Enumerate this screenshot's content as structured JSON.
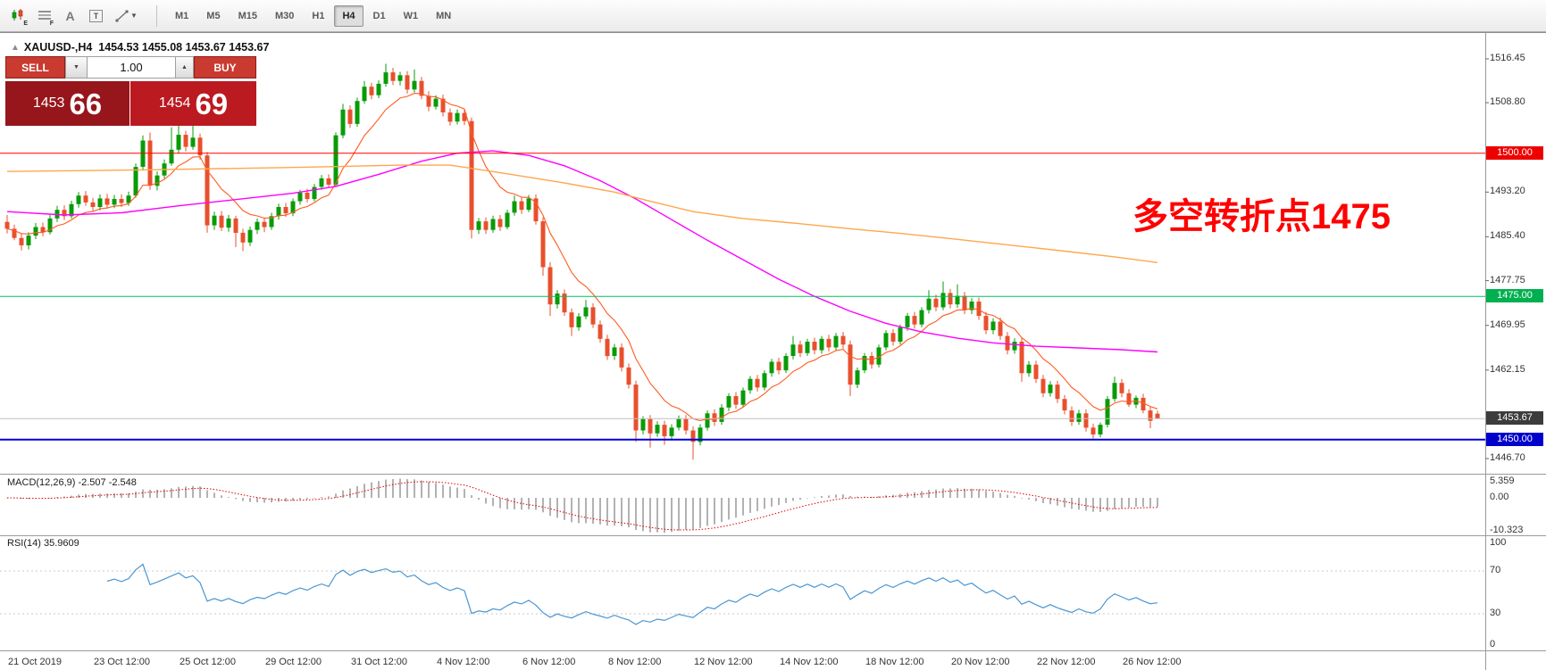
{
  "toolbar": {
    "tool_letters": {
      "e": "E",
      "f": "F",
      "a": "A",
      "t": "T"
    },
    "timeframes": [
      "M1",
      "M5",
      "M15",
      "M30",
      "H1",
      "H4",
      "D1",
      "W1",
      "MN"
    ],
    "active_timeframe": "H4"
  },
  "chart": {
    "symbol": "XAUUSD-",
    "timeframe": "H4",
    "header": "XAUUSD-,H4  1454.53 1455.08 1453.67 1453.67",
    "open": "1454.53",
    "high": "1455.08",
    "low": "1453.67",
    "close": "1453.67"
  },
  "trade_panel": {
    "sell_label": "SELL",
    "buy_label": "BUY",
    "volume": "1.00",
    "bid_main": "1453",
    "bid_big": "66",
    "ask_main": "1454",
    "ask_big": "69",
    "button_color": "#c93a30",
    "bid_color": "#96161c",
    "ask_color": "#bb1a20"
  },
  "annotation": {
    "text": "多空转折点1475",
    "color": "#ff0000"
  },
  "chart_data": {
    "type": "candlestick",
    "title": "XAUUSD- H4",
    "colors": {
      "up": "#089b08",
      "down": "#e8502d",
      "ma_fast": "#ff5a1f",
      "ma_medium": "#ff00ff",
      "ma_slow": "#ffa64d",
      "macd_histogram": "#a0a0a0",
      "macd_signal": "#e00000",
      "rsi": "#4a96d2"
    },
    "y_axis_labels": [
      "1516.45",
      "1508.80",
      "1493.20",
      "1485.40",
      "1477.75",
      "1469.95",
      "1462.15",
      "1446.70"
    ],
    "price_badges": [
      {
        "text": "1500.00",
        "price": 1500.0,
        "color": "#ee0000"
      },
      {
        "text": "1475.00",
        "price": 1475.0,
        "color": "#00b050"
      },
      {
        "text": "1453.67",
        "price": 1453.67,
        "color": "#3c3c3c"
      },
      {
        "text": "1450.00",
        "price": 1450.0,
        "color": "#0000cc"
      }
    ],
    "hlines": [
      {
        "price": 1500.0,
        "color": "#ff0000",
        "width": 1
      },
      {
        "price": 1475.0,
        "color": "#00c060",
        "width": 1
      },
      {
        "price": 1453.67,
        "color": "#c0c0c0",
        "width": 1
      },
      {
        "price": 1450.0,
        "color": "#0000dd",
        "width": 2
      }
    ],
    "time_labels": [
      "21 Oct 2019",
      "23 Oct 12:00",
      "25 Oct 12:00",
      "29 Oct 12:00",
      "31 Oct 12:00",
      "4 Nov 12:00",
      "6 Nov 12:00",
      "8 Nov 12:00",
      "12 Nov 12:00",
      "14 Nov 12:00",
      "18 Nov 12:00",
      "20 Nov 12:00",
      "22 Nov 12:00",
      "26 Nov 12:00"
    ],
    "ma_fast": {
      "period": 9
    },
    "ma_medium": {
      "points": [
        [
          0,
          1489.8
        ],
        [
          8,
          1489.2
        ],
        [
          16,
          1489.6
        ],
        [
          24,
          1490.8
        ],
        [
          32,
          1491.9
        ],
        [
          40,
          1493.0
        ],
        [
          46,
          1494.2
        ],
        [
          52,
          1496.3
        ],
        [
          58,
          1498.6
        ],
        [
          63,
          1500.0
        ],
        [
          68,
          1500.4
        ],
        [
          73,
          1499.6
        ],
        [
          78,
          1497.8
        ],
        [
          83,
          1495.2
        ],
        [
          88,
          1492.0
        ],
        [
          93,
          1488.4
        ],
        [
          98,
          1484.8
        ],
        [
          103,
          1481.4
        ],
        [
          108,
          1478.0
        ],
        [
          113,
          1475.0
        ],
        [
          118,
          1472.4
        ],
        [
          123,
          1470.3
        ],
        [
          128,
          1468.8
        ],
        [
          133,
          1467.7
        ],
        [
          138,
          1466.9
        ],
        [
          144,
          1466.3
        ],
        [
          150,
          1466.0
        ],
        [
          156,
          1465.7
        ],
        [
          161,
          1465.3
        ]
      ]
    },
    "ma_slow": {
      "points": [
        [
          0,
          1496.8
        ],
        [
          20,
          1497.1
        ],
        [
          40,
          1497.5
        ],
        [
          55,
          1497.9
        ],
        [
          62,
          1497.9
        ],
        [
          70,
          1496.4
        ],
        [
          78,
          1494.8
        ],
        [
          85,
          1493.2
        ],
        [
          90,
          1491.6
        ],
        [
          96,
          1489.8
        ],
        [
          103,
          1488.6
        ],
        [
          110,
          1487.8
        ],
        [
          118,
          1486.8
        ],
        [
          125,
          1486.0
        ],
        [
          132,
          1485.1
        ],
        [
          140,
          1484.0
        ],
        [
          148,
          1482.9
        ],
        [
          155,
          1481.9
        ],
        [
          161,
          1480.9
        ]
      ]
    },
    "indicators": {
      "macd": {
        "label": "MACD(12,26,9) -2.507 -2.548",
        "params": [
          12,
          26,
          9
        ],
        "values": [
          "-2.507",
          "-2.548"
        ],
        "axis": [
          "5.359",
          "0.00",
          "-10.323"
        ]
      },
      "rsi": {
        "label": "RSI(14) 35.9609",
        "period": 14,
        "value": "35.9609",
        "axis": [
          "100",
          "70",
          "30",
          "0"
        ],
        "levels": [
          70,
          30
        ]
      }
    },
    "candles": [
      [
        1488.0,
        1489.2,
        1486.0,
        1486.8
      ],
      [
        1486.8,
        1487.5,
        1484.8,
        1485.2
      ],
      [
        1485.2,
        1486.0,
        1483.0,
        1483.9
      ],
      [
        1483.9,
        1486.2,
        1483.2,
        1485.6
      ],
      [
        1485.6,
        1487.8,
        1485.0,
        1487.1
      ],
      [
        1487.1,
        1487.9,
        1485.5,
        1486.2
      ],
      [
        1486.2,
        1489.3,
        1485.8,
        1488.6
      ],
      [
        1488.6,
        1490.8,
        1488.0,
        1490.1
      ],
      [
        1490.1,
        1490.9,
        1488.3,
        1489.0
      ],
      [
        1489.0,
        1491.7,
        1488.6,
        1491.1
      ],
      [
        1491.1,
        1493.2,
        1490.5,
        1492.6
      ],
      [
        1492.6,
        1493.4,
        1490.8,
        1491.4
      ],
      [
        1491.4,
        1492.2,
        1489.8,
        1490.6
      ],
      [
        1490.6,
        1492.8,
        1490.0,
        1492.1
      ],
      [
        1492.1,
        1492.9,
        1490.3,
        1491.0
      ],
      [
        1491.0,
        1492.7,
        1490.4,
        1492.0
      ],
      [
        1492.0,
        1492.8,
        1490.6,
        1491.3
      ],
      [
        1491.3,
        1493.3,
        1490.8,
        1492.6
      ],
      [
        1492.6,
        1498.2,
        1492.2,
        1497.6
      ],
      [
        1497.6,
        1503.1,
        1497.0,
        1502.2
      ],
      [
        1502.2,
        1503.6,
        1493.6,
        1494.3
      ],
      [
        1494.3,
        1496.8,
        1493.5,
        1496.1
      ],
      [
        1496.1,
        1498.9,
        1495.6,
        1498.2
      ],
      [
        1498.2,
        1504.5,
        1497.8,
        1500.6
      ],
      [
        1500.6,
        1505.1,
        1500.0,
        1503.2
      ],
      [
        1503.2,
        1503.9,
        1500.3,
        1501.1
      ],
      [
        1501.1,
        1504.8,
        1500.6,
        1502.7
      ],
      [
        1502.7,
        1503.4,
        1498.9,
        1499.6
      ],
      [
        1499.6,
        1500.2,
        1486.1,
        1487.4
      ],
      [
        1487.4,
        1489.8,
        1486.6,
        1489.1
      ],
      [
        1489.1,
        1489.9,
        1486.4,
        1487.0
      ],
      [
        1487.0,
        1489.2,
        1486.3,
        1488.6
      ],
      [
        1488.6,
        1489.1,
        1483.6,
        1486.1
      ],
      [
        1486.1,
        1486.8,
        1482.9,
        1484.4
      ],
      [
        1484.4,
        1487.2,
        1483.8,
        1486.6
      ],
      [
        1486.6,
        1488.6,
        1485.9,
        1488.0
      ],
      [
        1488.0,
        1488.8,
        1486.2,
        1487.1
      ],
      [
        1487.1,
        1489.6,
        1486.6,
        1489.0
      ],
      [
        1489.0,
        1491.2,
        1488.4,
        1490.6
      ],
      [
        1490.6,
        1491.3,
        1488.9,
        1489.5
      ],
      [
        1489.5,
        1492.1,
        1489.0,
        1491.6
      ],
      [
        1491.6,
        1493.6,
        1491.0,
        1493.1
      ],
      [
        1493.1,
        1493.8,
        1491.4,
        1492.0
      ],
      [
        1492.0,
        1494.6,
        1491.6,
        1494.1
      ],
      [
        1494.1,
        1496.2,
        1493.6,
        1495.6
      ],
      [
        1495.6,
        1496.3,
        1493.9,
        1494.5
      ],
      [
        1494.5,
        1503.6,
        1494.1,
        1503.1
      ],
      [
        1503.1,
        1508.6,
        1502.6,
        1507.6
      ],
      [
        1507.6,
        1508.3,
        1504.4,
        1505.1
      ],
      [
        1505.1,
        1509.7,
        1504.6,
        1509.1
      ],
      [
        1509.1,
        1512.6,
        1508.6,
        1511.6
      ],
      [
        1511.6,
        1512.3,
        1509.4,
        1510.1
      ],
      [
        1510.1,
        1512.7,
        1509.6,
        1512.1
      ],
      [
        1512.1,
        1515.6,
        1511.6,
        1514.1
      ],
      [
        1514.1,
        1514.9,
        1511.9,
        1512.6
      ],
      [
        1512.6,
        1514.2,
        1511.8,
        1513.6
      ],
      [
        1513.6,
        1514.3,
        1510.4,
        1511.1
      ],
      [
        1511.1,
        1514.6,
        1510.6,
        1512.6
      ],
      [
        1512.6,
        1513.3,
        1509.4,
        1510.0
      ],
      [
        1510.0,
        1510.8,
        1507.3,
        1508.1
      ],
      [
        1508.1,
        1510.1,
        1507.6,
        1509.5
      ],
      [
        1509.5,
        1510.2,
        1506.4,
        1507.1
      ],
      [
        1507.1,
        1507.8,
        1504.8,
        1505.5
      ],
      [
        1505.5,
        1507.6,
        1505.0,
        1507.0
      ],
      [
        1507.0,
        1507.7,
        1504.9,
        1505.6
      ],
      [
        1505.6,
        1506.2,
        1485.1,
        1486.6
      ],
      [
        1486.6,
        1488.7,
        1485.9,
        1488.1
      ],
      [
        1488.1,
        1488.8,
        1485.9,
        1486.6
      ],
      [
        1486.6,
        1489.1,
        1486.1,
        1488.5
      ],
      [
        1488.5,
        1489.2,
        1486.4,
        1487.1
      ],
      [
        1487.1,
        1490.1,
        1486.7,
        1489.6
      ],
      [
        1489.6,
        1492.6,
        1489.1,
        1491.6
      ],
      [
        1491.6,
        1492.3,
        1489.4,
        1490.1
      ],
      [
        1490.1,
        1492.7,
        1489.7,
        1492.1
      ],
      [
        1492.1,
        1492.8,
        1487.5,
        1488.1
      ],
      [
        1488.1,
        1488.8,
        1478.6,
        1480.1
      ],
      [
        1480.1,
        1481.0,
        1471.6,
        1473.6
      ],
      [
        1473.6,
        1476.1,
        1472.9,
        1475.5
      ],
      [
        1475.5,
        1476.2,
        1471.6,
        1472.2
      ],
      [
        1472.2,
        1472.9,
        1468.1,
        1469.6
      ],
      [
        1469.6,
        1472.1,
        1469.0,
        1471.5
      ],
      [
        1471.5,
        1474.4,
        1471.0,
        1473.1
      ],
      [
        1473.1,
        1473.8,
        1469.5,
        1470.1
      ],
      [
        1470.1,
        1470.8,
        1466.9,
        1467.6
      ],
      [
        1467.6,
        1468.3,
        1463.9,
        1464.6
      ],
      [
        1464.6,
        1466.7,
        1463.9,
        1466.1
      ],
      [
        1466.1,
        1466.8,
        1461.9,
        1462.6
      ],
      [
        1462.6,
        1463.3,
        1458.9,
        1459.6
      ],
      [
        1459.6,
        1460.3,
        1449.6,
        1451.6
      ],
      [
        1451.6,
        1454.1,
        1450.9,
        1453.6
      ],
      [
        1453.6,
        1454.3,
        1448.6,
        1451.1
      ],
      [
        1451.1,
        1453.2,
        1450.5,
        1452.6
      ],
      [
        1452.6,
        1453.3,
        1449.1,
        1450.6
      ],
      [
        1450.6,
        1452.7,
        1450.0,
        1452.1
      ],
      [
        1452.1,
        1454.2,
        1451.6,
        1453.6
      ],
      [
        1453.6,
        1454.3,
        1450.9,
        1451.6
      ],
      [
        1451.6,
        1452.3,
        1446.5,
        1449.6
      ],
      [
        1449.6,
        1452.7,
        1449.0,
        1452.1
      ],
      [
        1452.1,
        1455.1,
        1451.6,
        1454.6
      ],
      [
        1454.6,
        1455.3,
        1452.4,
        1453.1
      ],
      [
        1453.1,
        1456.2,
        1452.6,
        1455.6
      ],
      [
        1455.6,
        1458.1,
        1455.0,
        1457.6
      ],
      [
        1457.6,
        1458.3,
        1455.4,
        1456.1
      ],
      [
        1456.1,
        1459.1,
        1455.6,
        1458.6
      ],
      [
        1458.6,
        1461.1,
        1458.0,
        1460.6
      ],
      [
        1460.6,
        1461.3,
        1458.4,
        1459.1
      ],
      [
        1459.1,
        1462.1,
        1458.6,
        1461.6
      ],
      [
        1461.6,
        1464.1,
        1461.0,
        1463.6
      ],
      [
        1463.6,
        1464.3,
        1461.4,
        1462.1
      ],
      [
        1462.1,
        1465.1,
        1461.6,
        1464.6
      ],
      [
        1464.6,
        1468.1,
        1464.0,
        1466.6
      ],
      [
        1466.6,
        1467.3,
        1464.4,
        1465.1
      ],
      [
        1465.1,
        1467.6,
        1464.6,
        1467.1
      ],
      [
        1467.1,
        1467.8,
        1464.9,
        1465.6
      ],
      [
        1465.6,
        1468.1,
        1465.0,
        1467.6
      ],
      [
        1467.6,
        1468.3,
        1465.4,
        1466.1
      ],
      [
        1466.1,
        1468.6,
        1465.6,
        1468.1
      ],
      [
        1468.1,
        1468.8,
        1465.9,
        1466.6
      ],
      [
        1466.6,
        1467.3,
        1457.6,
        1459.6
      ],
      [
        1459.6,
        1462.6,
        1459.0,
        1462.1
      ],
      [
        1462.1,
        1465.1,
        1461.6,
        1464.6
      ],
      [
        1464.6,
        1465.3,
        1462.4,
        1463.1
      ],
      [
        1463.1,
        1466.6,
        1462.6,
        1466.1
      ],
      [
        1466.1,
        1469.1,
        1465.6,
        1468.6
      ],
      [
        1468.6,
        1469.3,
        1466.4,
        1467.1
      ],
      [
        1467.1,
        1470.1,
        1466.6,
        1469.6
      ],
      [
        1469.6,
        1472.1,
        1469.0,
        1471.6
      ],
      [
        1471.6,
        1472.3,
        1469.4,
        1470.1
      ],
      [
        1470.1,
        1473.1,
        1469.6,
        1472.6
      ],
      [
        1472.6,
        1476.1,
        1472.0,
        1474.6
      ],
      [
        1474.6,
        1475.3,
        1472.4,
        1473.1
      ],
      [
        1473.1,
        1477.6,
        1472.6,
        1475.6
      ],
      [
        1475.6,
        1476.3,
        1472.9,
        1473.6
      ],
      [
        1473.6,
        1477.1,
        1473.0,
        1475.1
      ],
      [
        1475.1,
        1475.8,
        1471.9,
        1472.6
      ],
      [
        1472.6,
        1474.7,
        1471.9,
        1474.1
      ],
      [
        1474.1,
        1474.8,
        1470.9,
        1471.6
      ],
      [
        1471.6,
        1472.3,
        1468.4,
        1469.1
      ],
      [
        1469.1,
        1471.2,
        1468.4,
        1470.6
      ],
      [
        1470.6,
        1471.3,
        1467.4,
        1468.1
      ],
      [
        1468.1,
        1468.8,
        1464.9,
        1465.6
      ],
      [
        1465.6,
        1467.7,
        1465.0,
        1467.1
      ],
      [
        1467.1,
        1467.8,
        1460.1,
        1461.6
      ],
      [
        1461.6,
        1463.7,
        1461.0,
        1463.1
      ],
      [
        1463.1,
        1463.8,
        1459.9,
        1460.6
      ],
      [
        1460.6,
        1461.3,
        1457.4,
        1458.1
      ],
      [
        1458.1,
        1460.2,
        1457.5,
        1459.6
      ],
      [
        1459.6,
        1460.3,
        1456.4,
        1457.1
      ],
      [
        1457.1,
        1457.8,
        1454.4,
        1455.1
      ],
      [
        1455.1,
        1455.8,
        1452.4,
        1453.1
      ],
      [
        1453.1,
        1455.2,
        1452.6,
        1454.6
      ],
      [
        1454.6,
        1455.3,
        1451.4,
        1452.1
      ],
      [
        1452.1,
        1452.8,
        1450.2,
        1450.9
      ],
      [
        1450.9,
        1453.0,
        1450.4,
        1452.6
      ],
      [
        1452.6,
        1457.6,
        1452.1,
        1457.1
      ],
      [
        1457.1,
        1461.0,
        1456.6,
        1459.9
      ],
      [
        1459.9,
        1460.6,
        1457.4,
        1458.1
      ],
      [
        1458.1,
        1458.8,
        1455.7,
        1456.1
      ],
      [
        1456.1,
        1457.7,
        1455.5,
        1457.3
      ],
      [
        1457.3,
        1458.0,
        1454.6,
        1455.1
      ],
      [
        1455.1,
        1455.8,
        1452.0,
        1453.3
      ],
      [
        1454.53,
        1455.08,
        1453.67,
        1453.67
      ]
    ]
  }
}
